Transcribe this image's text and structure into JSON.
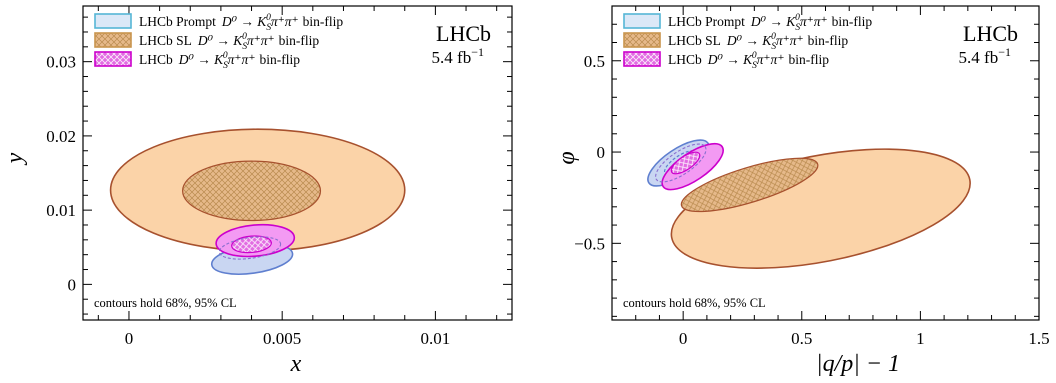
{
  "chart_data": [
    {
      "type": "contour",
      "xlabel": "x",
      "ylabel": "y",
      "xlim": [
        -0.0015,
        0.0125
      ],
      "ylim": [
        -0.0048,
        0.0375
      ],
      "xticks": [
        0,
        0.005,
        0.01
      ],
      "xtick_labels": [
        "0",
        "0.005",
        "0.01"
      ],
      "yticks": [
        0,
        0.01,
        0.02,
        0.03
      ],
      "ytick_labels": [
        "0",
        "0.01",
        "0.02",
        "0.03"
      ],
      "experiment": "LHCb",
      "luminosity": "5.4 fb",
      "luminosity_exp": "−1",
      "note": "contours hold 68%, 95% CL",
      "legend_position": "top-left",
      "series": [
        {
          "legend_lhcb": "LHCb Prompt",
          "legend_decay": "D⁰ → K",
          "legend_s": "S",
          "legend_zero": "0",
          "legend_pions": "π⁺π⁺",
          "legend_suffix": "bin-flip",
          "fill": "#c9d6f2",
          "edge": "#5f7fcf",
          "legend_edge": "#55b6d6",
          "contours": [
            {
              "cl": "95%",
              "cx": 0.00402,
              "cy": 0.0034,
              "rx": 0.00133,
              "ry": 0.0019,
              "angle": -8,
              "dashed": false
            },
            {
              "cl": "68%",
              "cx": 0.00395,
              "cy": 0.0049,
              "rx": 0.00065,
              "ry": 0.0009,
              "angle": -8,
              "dashed": true
            }
          ]
        },
        {
          "legend_lhcb": "LHCb SL",
          "legend_decay": "D⁰ → K",
          "legend_s": "S",
          "legend_zero": "0",
          "legend_pions": "π⁺π⁺",
          "legend_suffix": "bin-flip",
          "fill": "#fbd3a8",
          "edge": "#a7512e",
          "legend_edge": "#c9954e",
          "contours": [
            {
              "cl": "95%",
              "cx": 0.0042,
              "cy": 0.0127,
              "rx": 0.0048,
              "ry": 0.0082,
              "angle": 0,
              "dashed": false
            },
            {
              "cl": "68%",
              "cx": 0.004,
              "cy": 0.0126,
              "rx": 0.00225,
              "ry": 0.004,
              "angle": 0,
              "dashed": false
            }
          ]
        },
        {
          "legend_lhcb": "LHCb",
          "legend_decay": "D⁰ → K",
          "legend_s": "S",
          "legend_zero": "0",
          "legend_pions": "π⁺π⁺",
          "legend_suffix": "bin-flip",
          "fill": "#f39af3",
          "edge": "#cc00cc",
          "legend_edge": "#cc00cc",
          "contours": [
            {
              "cl": "95%",
              "cx": 0.00412,
              "cy": 0.0059,
              "rx": 0.00128,
              "ry": 0.0021,
              "angle": -5,
              "dashed": false
            },
            {
              "cl": "68%",
              "cx": 0.004,
              "cy": 0.0054,
              "rx": 0.00065,
              "ry": 0.0011,
              "angle": -5,
              "dashed": false
            }
          ]
        }
      ]
    },
    {
      "type": "contour",
      "xlabel": "|q/p| − 1",
      "ylabel": "φ",
      "xlim": [
        -0.3,
        1.5
      ],
      "ylim": [
        -0.92,
        0.8
      ],
      "xticks": [
        0,
        0.5,
        1,
        1.5
      ],
      "xtick_labels": [
        "0",
        "0.5",
        "1",
        "1.5"
      ],
      "yticks": [
        -0.5,
        0,
        0.5
      ],
      "ytick_labels": [
        "−0.5",
        "0",
        "0.5"
      ],
      "experiment": "LHCb",
      "luminosity": "5.4 fb",
      "luminosity_exp": "−1",
      "note": "contours hold 68%, 95% CL",
      "legend_position": "top-left",
      "series": [
        {
          "legend_lhcb": "LHCb Prompt",
          "legend_decay": "D⁰ → K",
          "legend_s": "S",
          "legend_zero": "0",
          "legend_pions": "π⁺π⁺",
          "legend_suffix": "bin-flip",
          "fill": "#c9d6f2",
          "edge": "#5f7fcf",
          "legend_edge": "#55b6d6",
          "contours": [
            {
              "cl": "95%",
              "cx": -0.02,
              "cy": -0.06,
              "rx": 0.15,
              "ry": 0.075,
              "angle": -34,
              "dashed": false
            },
            {
              "cl": "68%",
              "cx": -0.01,
              "cy": -0.06,
              "rx": 0.08,
              "ry": 0.04,
              "angle": -34,
              "dashed": true
            }
          ]
        },
        {
          "legend_lhcb": "LHCb SL",
          "legend_decay": "D⁰ → K",
          "legend_s": "S",
          "legend_zero": "0",
          "legend_pions": "π⁺π⁺",
          "legend_suffix": "bin-flip",
          "fill": "#fbd3a8",
          "edge": "#a7512e",
          "legend_edge": "#c9954e",
          "contours": [
            {
              "cl": "95%",
              "cx": 0.58,
              "cy": -0.31,
              "rx": 0.64,
              "ry": 0.29,
              "angle": -11,
              "dashed": false
            },
            {
              "cl": "68%",
              "cx": 0.28,
              "cy": -0.18,
              "rx": 0.3,
              "ry": 0.095,
              "angle": -17,
              "dashed": false
            }
          ]
        },
        {
          "legend_lhcb": "LHCb",
          "legend_decay": "D⁰ → K",
          "legend_s": "S",
          "legend_zero": "0",
          "legend_pions": "π⁺π⁺",
          "legend_suffix": "bin-flip",
          "fill": "#f39af3",
          "edge": "#cc00cc",
          "legend_edge": "#cc00cc",
          "contours": [
            {
              "cl": "95%",
              "cx": 0.04,
              "cy": -0.08,
              "rx": 0.15,
              "ry": 0.075,
              "angle": -34,
              "dashed": false
            },
            {
              "cl": "68%",
              "cx": 0.01,
              "cy": -0.06,
              "rx": 0.07,
              "ry": 0.036,
              "angle": -34,
              "dashed": false
            }
          ]
        }
      ]
    }
  ]
}
